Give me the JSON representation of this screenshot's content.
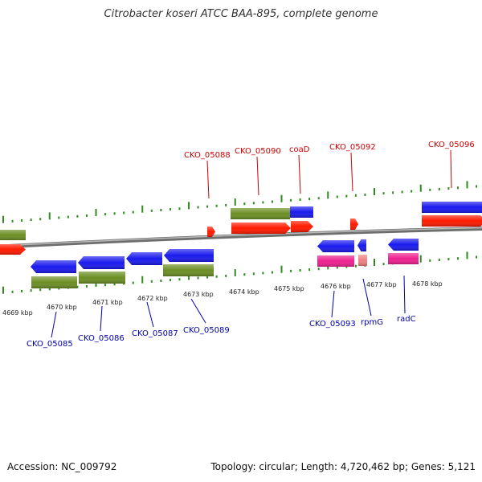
{
  "title": "Citrobacter koseri ATCC BAA-895, complete genome",
  "footer": {
    "accession": "Accession: NC_009792",
    "summary": "Topology: circular; Length: 4,720,462 bp; Genes: 5,121"
  },
  "colors": {
    "backbone": "#8a8a8a",
    "tick": "#2e8b1e",
    "cds": "#ff1a00",
    "cds_rev": "#1a1aee",
    "gene": "#6b8e23",
    "rna": "#ee1f8f",
    "rna_light": "#ee8080",
    "label_top": "#cc0000",
    "label_bottom": "#0000aa"
  },
  "scale": {
    "labels": [
      "4669 kbp",
      "4670 kbp",
      "4671 kbp",
      "4672 kbp",
      "4673 kbp",
      "4674 kbp",
      "4675 kbp",
      "4676 kbp",
      "4677 kbp",
      "4678 kbp"
    ]
  },
  "labels_top": [
    "CKO_05088",
    "CKO_05090",
    "coaD",
    "CKO_05092",
    "CKO_05096"
  ],
  "labels_bottom": [
    "CKO_05085",
    "CKO_05086",
    "CKO_05087",
    "CKO_05089",
    "CKO_05093",
    "rpmG",
    "radC"
  ]
}
